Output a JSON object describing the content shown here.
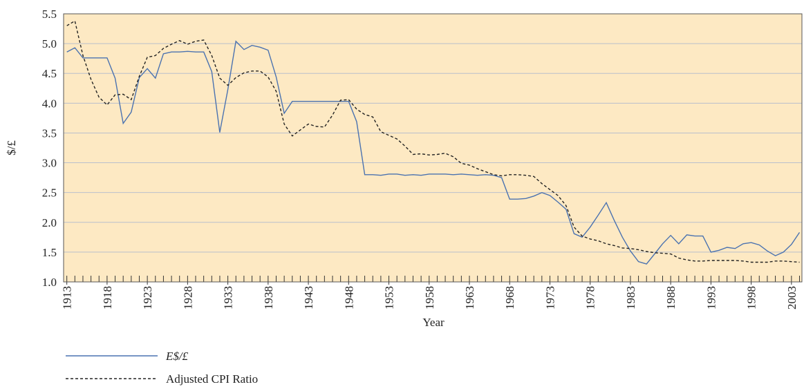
{
  "chart_data": {
    "type": "line",
    "x_label": "Year",
    "y_label": "$/£",
    "x": [
      1913,
      1914,
      1915,
      1916,
      1917,
      1918,
      1919,
      1920,
      1921,
      1922,
      1923,
      1924,
      1925,
      1926,
      1927,
      1928,
      1929,
      1930,
      1931,
      1932,
      1933,
      1934,
      1935,
      1936,
      1937,
      1938,
      1939,
      1940,
      1941,
      1942,
      1943,
      1944,
      1945,
      1946,
      1947,
      1948,
      1949,
      1950,
      1951,
      1952,
      1953,
      1954,
      1955,
      1956,
      1957,
      1958,
      1959,
      1960,
      1961,
      1962,
      1963,
      1964,
      1965,
      1966,
      1967,
      1968,
      1969,
      1970,
      1971,
      1972,
      1973,
      1974,
      1975,
      1976,
      1977,
      1978,
      1979,
      1980,
      1981,
      1982,
      1983,
      1984,
      1985,
      1986,
      1987,
      1988,
      1989,
      1990,
      1991,
      1992,
      1993,
      1994,
      1995,
      1996,
      1997,
      1998,
      1999,
      2000,
      2001,
      2002,
      2003,
      2004
    ],
    "series": [
      {
        "name": "E$/£",
        "color": "#4a72b0",
        "dash": false,
        "values": [
          4.86,
          4.93,
          4.76,
          4.76,
          4.76,
          4.76,
          4.42,
          3.66,
          3.85,
          4.43,
          4.58,
          4.42,
          4.83,
          4.86,
          4.86,
          4.87,
          4.86,
          4.86,
          4.53,
          3.51,
          4.23,
          5.04,
          4.9,
          4.97,
          4.94,
          4.89,
          4.44,
          3.83,
          4.03,
          4.03,
          4.03,
          4.03,
          4.03,
          4.03,
          4.03,
          4.03,
          3.69,
          2.8,
          2.8,
          2.79,
          2.81,
          2.81,
          2.79,
          2.8,
          2.79,
          2.81,
          2.81,
          2.81,
          2.8,
          2.81,
          2.8,
          2.79,
          2.8,
          2.79,
          2.75,
          2.39,
          2.39,
          2.4,
          2.44,
          2.5,
          2.45,
          2.34,
          2.22,
          1.81,
          1.75,
          1.92,
          2.12,
          2.33,
          2.03,
          1.75,
          1.52,
          1.34,
          1.3,
          1.47,
          1.64,
          1.78,
          1.64,
          1.79,
          1.77,
          1.77,
          1.5,
          1.53,
          1.58,
          1.56,
          1.64,
          1.66,
          1.62,
          1.52,
          1.44,
          1.5,
          1.63,
          1.83
        ]
      },
      {
        "name": "Adjusted CPI Ratio",
        "color": "#222222",
        "dash": true,
        "values": [
          5.3,
          5.38,
          4.8,
          4.4,
          4.1,
          3.97,
          4.14,
          4.15,
          4.06,
          4.45,
          4.77,
          4.8,
          4.92,
          4.99,
          5.05,
          4.99,
          5.04,
          5.06,
          4.8,
          4.42,
          4.3,
          4.43,
          4.51,
          4.54,
          4.54,
          4.44,
          4.2,
          3.65,
          3.45,
          3.55,
          3.65,
          3.61,
          3.6,
          3.8,
          4.05,
          4.06,
          3.9,
          3.81,
          3.77,
          3.52,
          3.46,
          3.4,
          3.28,
          3.14,
          3.15,
          3.13,
          3.14,
          3.16,
          3.1,
          2.99,
          2.96,
          2.9,
          2.85,
          2.8,
          2.78,
          2.8,
          2.8,
          2.79,
          2.77,
          2.65,
          2.55,
          2.45,
          2.28,
          1.92,
          1.77,
          1.72,
          1.69,
          1.64,
          1.61,
          1.57,
          1.56,
          1.54,
          1.51,
          1.49,
          1.48,
          1.47,
          1.4,
          1.37,
          1.35,
          1.35,
          1.36,
          1.36,
          1.36,
          1.36,
          1.35,
          1.33,
          1.33,
          1.33,
          1.35,
          1.35,
          1.34,
          1.33
        ]
      }
    ],
    "xlim": [
      1912.6,
      2004.3
    ],
    "xticks": [
      1913,
      1918,
      1923,
      1928,
      1933,
      1938,
      1943,
      1948,
      1953,
      1958,
      1963,
      1968,
      1973,
      1978,
      1983,
      1988,
      1993,
      1998,
      2003
    ],
    "ylim": [
      1,
      5.5
    ],
    "yticks": [
      {
        "value": 1,
        "label": "1.0"
      },
      1.5,
      {
        "value": 2,
        "label": "2.0"
      },
      2.5,
      {
        "value": 3,
        "label": "3.0"
      },
      3.5,
      {
        "value": 4,
        "label": "4.0"
      },
      4.5,
      {
        "value": 5,
        "label": "5.0"
      },
      5.5
    ],
    "grid": true,
    "background": "#fde9c3"
  }
}
